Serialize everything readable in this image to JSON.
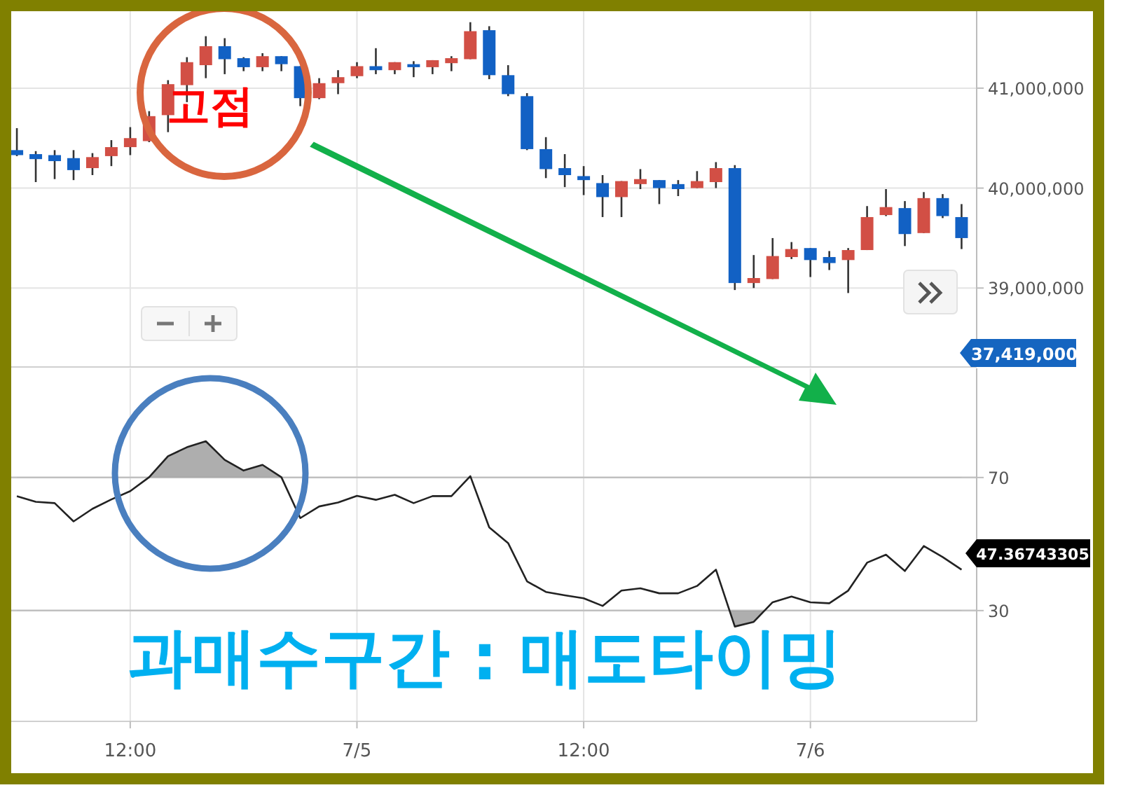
{
  "chart_data": [
    {
      "type": "candlestick",
      "tick_labels": "y",
      "grid": true,
      "categories": [
        null,
        null,
        null,
        null,
        null,
        null,
        null,
        null,
        null,
        null,
        null,
        null,
        null,
        null,
        null,
        null,
        null,
        null,
        null,
        null,
        null,
        null,
        null,
        null,
        null,
        null,
        null,
        null,
        null,
        null,
        null,
        null,
        null,
        null,
        null,
        null,
        null,
        null,
        null,
        null,
        null,
        null,
        null,
        null,
        null,
        null,
        null,
        null,
        null,
        null,
        null
      ],
      "ohlc": [
        [
          40380000,
          40600000,
          40320000,
          40330000
        ],
        [
          40340000,
          40370000,
          40060000,
          40290000
        ],
        [
          40330000,
          40380000,
          40090000,
          40270000
        ],
        [
          40300000,
          40380000,
          40080000,
          40180000
        ],
        [
          40200000,
          40350000,
          40130000,
          40310000
        ],
        [
          40320000,
          40480000,
          40220000,
          40410000
        ],
        [
          40410000,
          40610000,
          40330000,
          40500000
        ],
        [
          40470000,
          40770000,
          40460000,
          40720000
        ],
        [
          40730000,
          41080000,
          40560000,
          41040000
        ],
        [
          41030000,
          41310000,
          40860000,
          41260000
        ],
        [
          41230000,
          41520000,
          41100000,
          41420000
        ],
        [
          41420000,
          41500000,
          41140000,
          41290000
        ],
        [
          41300000,
          41310000,
          41170000,
          41210000
        ],
        [
          41210000,
          41350000,
          41170000,
          41320000
        ],
        [
          41320000,
          41320000,
          41170000,
          41240000
        ],
        [
          41220000,
          41220000,
          40820000,
          40900000
        ],
        [
          40900000,
          41100000,
          40890000,
          41050000
        ],
        [
          41050000,
          41180000,
          40940000,
          41110000
        ],
        [
          41120000,
          41260000,
          41100000,
          41220000
        ],
        [
          41220000,
          41400000,
          41140000,
          41180000
        ],
        [
          41180000,
          41260000,
          41140000,
          41260000
        ],
        [
          41240000,
          41270000,
          41110000,
          41210000
        ],
        [
          41210000,
          41280000,
          41140000,
          41280000
        ],
        [
          41250000,
          41320000,
          41170000,
          41300000
        ],
        [
          41290000,
          41660000,
          41290000,
          41570000
        ],
        [
          41580000,
          41620000,
          41090000,
          41130000
        ],
        [
          41130000,
          41230000,
          40920000,
          40940000
        ],
        [
          40920000,
          40950000,
          40380000,
          40390000
        ],
        [
          40390000,
          40510000,
          40100000,
          40190000
        ],
        [
          40200000,
          40340000,
          40010000,
          40130000
        ],
        [
          40120000,
          40220000,
          39930000,
          40080000
        ],
        [
          40050000,
          40130000,
          39710000,
          39910000
        ],
        [
          39910000,
          40070000,
          39710000,
          40070000
        ],
        [
          40040000,
          40190000,
          39990000,
          40090000
        ],
        [
          40080000,
          40080000,
          39840000,
          40000000
        ],
        [
          40040000,
          40080000,
          39920000,
          39990000
        ],
        [
          40000000,
          40170000,
          40000000,
          40070000
        ],
        [
          40060000,
          40260000,
          40000000,
          40200000
        ],
        [
          40200000,
          40230000,
          38980000,
          39050000
        ],
        [
          39050000,
          39330000,
          39000000,
          39100000
        ],
        [
          39090000,
          39500000,
          39090000,
          39320000
        ],
        [
          39310000,
          39460000,
          39290000,
          39390000
        ],
        [
          39400000,
          39400000,
          39110000,
          39280000
        ],
        [
          39310000,
          39370000,
          39180000,
          39250000
        ],
        [
          39280000,
          39400000,
          38950000,
          39380000
        ],
        [
          39380000,
          39820000,
          39380000,
          39710000
        ],
        [
          39730000,
          39990000,
          39720000,
          39810000
        ],
        [
          39800000,
          39870000,
          39420000,
          39540000
        ],
        [
          39550000,
          39960000,
          39550000,
          39900000
        ],
        [
          39900000,
          39940000,
          39700000,
          39720000
        ],
        [
          39710000,
          39840000,
          39390000,
          39500000
        ]
      ],
      "colors": [
        "#1261c4",
        "#1261c4",
        "#1261c4",
        "#1261c4",
        "#d24f45",
        "#d24f45",
        "#d24f45",
        "#d24f45",
        "#d24f45",
        "#d24f45",
        "#d24f45",
        "#1261c4",
        "#1261c4",
        "#d24f45",
        "#1261c4",
        "#1261c4",
        "#d24f45",
        "#d24f45",
        "#d24f45",
        "#1261c4",
        "#d24f45",
        "#1261c4",
        "#d24f45",
        "#d24f45",
        "#d24f45",
        "#1261c4",
        "#1261c4",
        "#1261c4",
        "#1261c4",
        "#1261c4",
        "#1261c4",
        "#1261c4",
        "#d24f45",
        "#d24f45",
        "#1261c4",
        "#1261c4",
        "#d24f45",
        "#d24f45",
        "#1261c4",
        "#d24f45",
        "#d24f45",
        "#d24f45",
        "#1261c4",
        "#1261c4",
        "#d24f45",
        "#d24f45",
        "#d24f45",
        "#1261c4",
        "#d24f45",
        "#1261c4",
        "#1261c4"
      ],
      "ylim": [
        38210000,
        41770000
      ],
      "yticks": [
        {
          "value": 39000000,
          "label": "39,000,000"
        },
        {
          "value": 40000000,
          "label": "40,000,000"
        },
        {
          "value": 41000000,
          "label": "41,000,000"
        }
      ],
      "annotations": [
        "고점",
        "37,419,000"
      ]
    },
    {
      "type": "line",
      "grid": true,
      "color": "#222222",
      "marker": "none",
      "categories": [
        null,
        null,
        null,
        null,
        null,
        null,
        "12:00",
        null,
        null,
        null,
        null,
        null,
        null,
        null,
        null,
        null,
        null,
        null,
        "7/5",
        null,
        null,
        null,
        null,
        null,
        null,
        null,
        null,
        null,
        null,
        null,
        "12:00",
        null,
        null,
        null,
        null,
        null,
        null,
        null,
        null,
        null,
        null,
        null,
        "7/6",
        null,
        null,
        null,
        null,
        null,
        null,
        null,
        null
      ],
      "values": [
        64.4,
        62.7,
        62.3,
        56.8,
        60.6,
        63.4,
        65.9,
        70.1,
        76.4,
        79.1,
        80.9,
        75.3,
        72.1,
        73.8,
        70.1,
        57.8,
        61.3,
        62.5,
        64.5,
        63.3,
        64.8,
        62.3,
        64.4,
        64.4,
        70.4,
        55.0,
        50.3,
        38.8,
        35.6,
        34.6,
        33.7,
        31.4,
        36.0,
        36.7,
        35.2,
        35.2,
        37.4,
        42.3,
        25.2,
        26.6,
        32.5,
        34.2,
        32.5,
        32.2,
        36.0,
        44.4,
        46.8,
        41.9,
        49.4,
        46.1,
        42.3
      ],
      "ylim": [
        -3.3,
        102.8
      ],
      "yticks": [
        30,
        70
      ],
      "ref_lines": [
        {
          "axis": "y",
          "value": 70,
          "color": "#c4c4c4"
        },
        {
          "axis": "y",
          "value": 30,
          "color": "#c4c4c4"
        }
      ],
      "annotations": [
        "과매수구간 : 매도타이밍",
        "47.36743305"
      ]
    }
  ]
}
